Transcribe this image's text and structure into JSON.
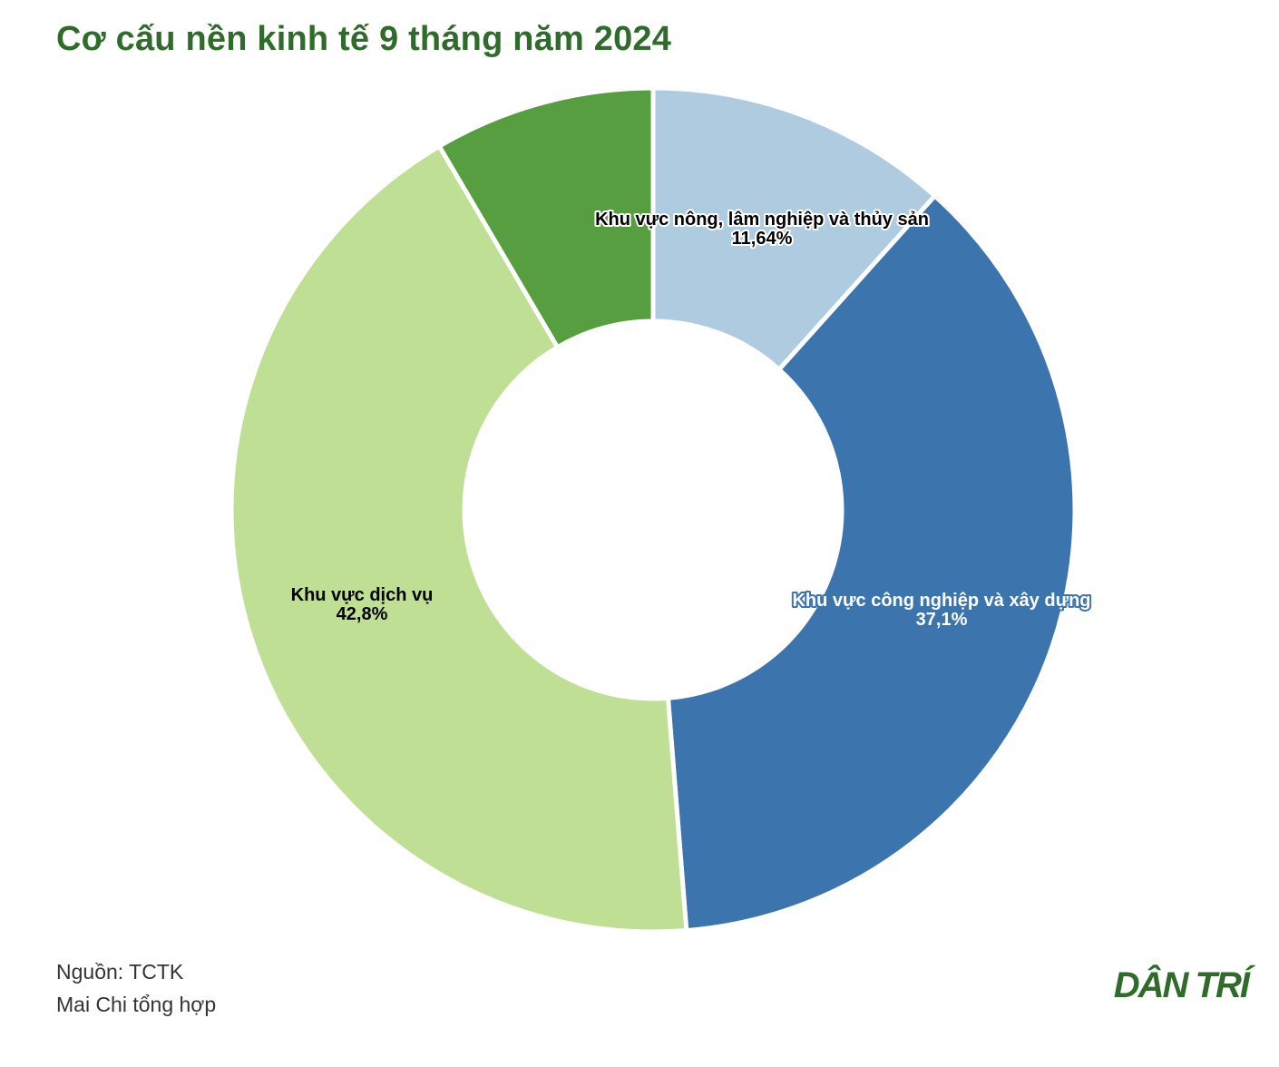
{
  "title": "Cơ cấu nền kinh tế 9 tháng năm 2024",
  "source": "Nguồn: TCTK",
  "author": "Mai Chi tổng hợp",
  "logo": "DÂN TRÍ",
  "chart_data": {
    "type": "pie",
    "donut": true,
    "start_angle_deg": 0,
    "segments": [
      {
        "name": "Khu vực nông, lâm nghiệp và thủy sản",
        "value": 11.64,
        "label": "11,64%",
        "color": "#aecbe0",
        "text_color": "#000000",
        "halo": "#ffffff"
      },
      {
        "name": "Khu vực công nghiệp và xây dựng",
        "value": 37.1,
        "label": "37,1%",
        "color": "#3c75ad",
        "text_color": "#ffffff",
        "halo": "#3c75ad"
      },
      {
        "name": "Khu vực dịch vụ",
        "value": 42.8,
        "label": "42,8%",
        "color": "#bfdf94",
        "text_color": "#000000",
        "halo": "#bfdf94"
      },
      {
        "name": "",
        "value": 8.46,
        "label": "",
        "color": "#569e40",
        "text_color": "#000000",
        "halo": "#569e40"
      }
    ]
  }
}
